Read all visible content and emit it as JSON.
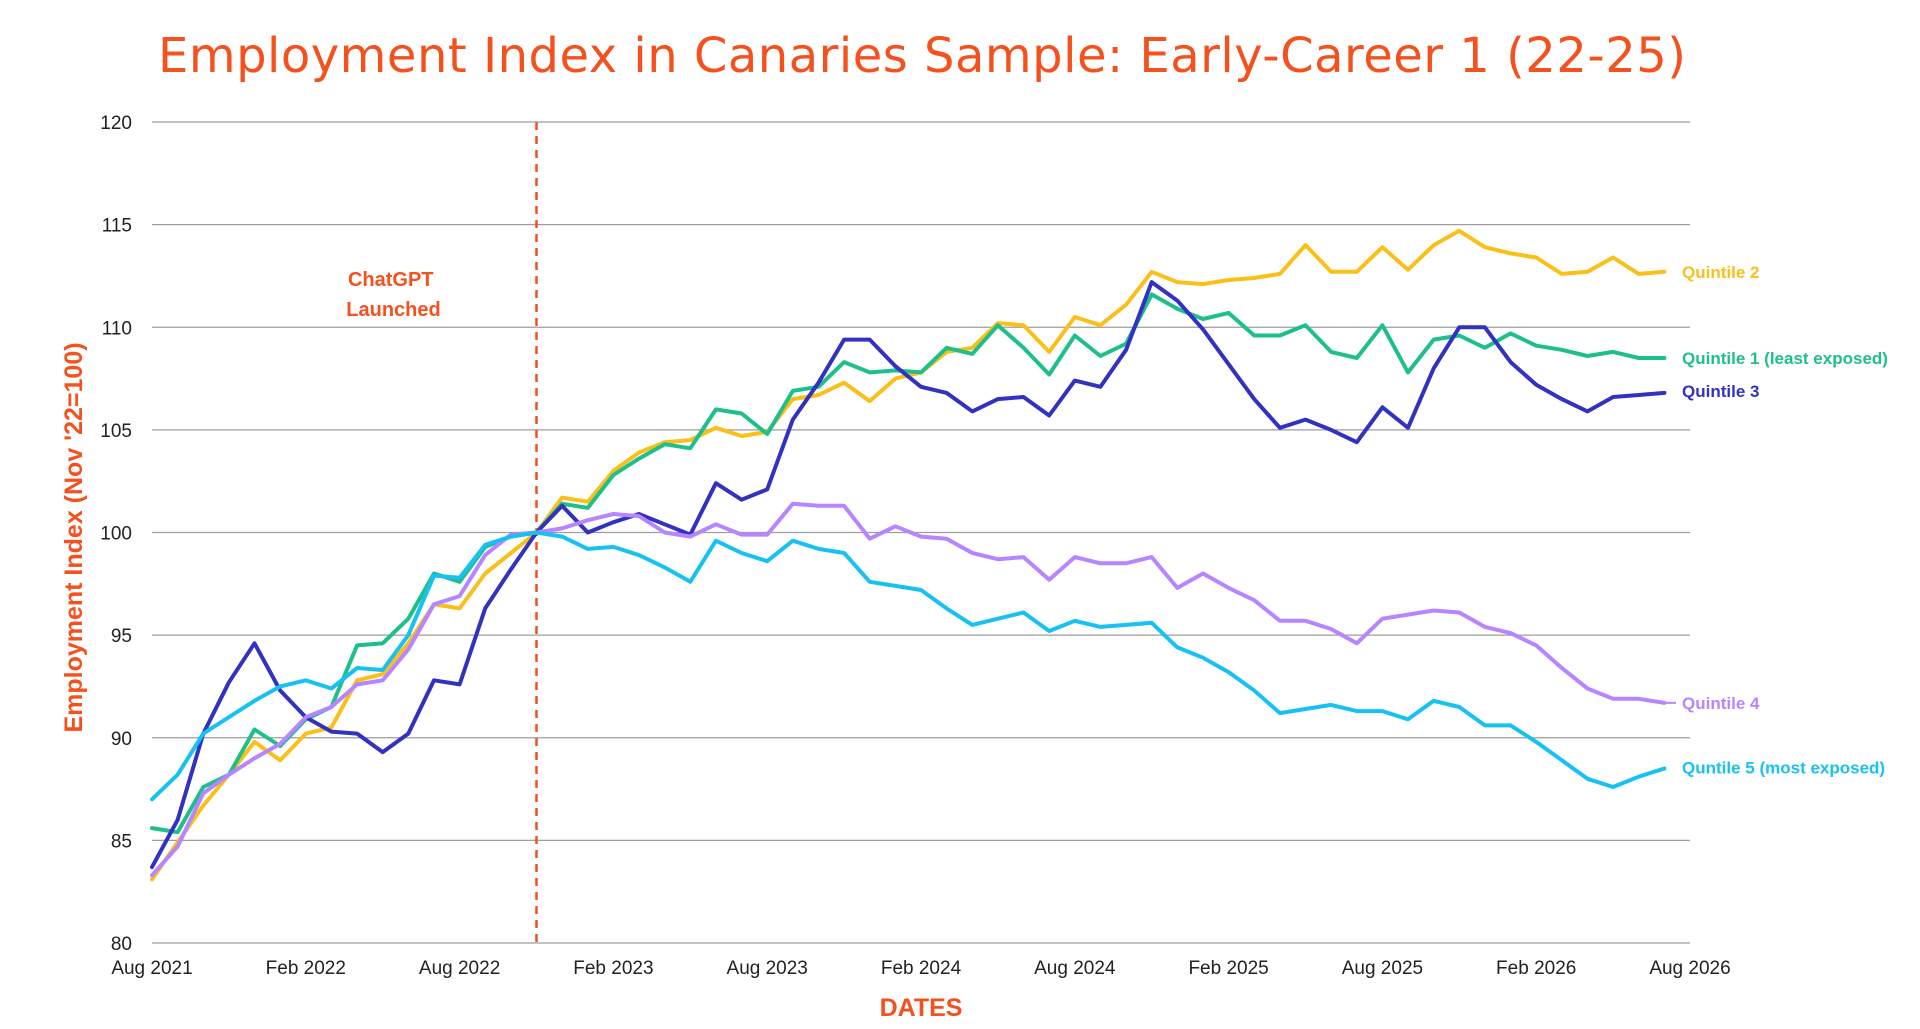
{
  "chart_data": {
    "type": "line",
    "title": "Employment Index in Canaries Sample: Early-Career 1 (22-25)",
    "xlabel": "DATES",
    "ylabel": "Employment Index (Nov '22=100)",
    "ylim": [
      80,
      120
    ],
    "yticks": [
      80,
      85,
      90,
      95,
      100,
      105,
      110,
      115,
      120
    ],
    "xlim": [
      "2021-08",
      "2026-08"
    ],
    "xticks": [
      "Aug 2021",
      "Feb 2022",
      "Aug 2022",
      "Feb 2023",
      "Aug 2023",
      "Feb 2024",
      "Aug 2024",
      "Feb 2025",
      "Aug 2025",
      "Feb 2026",
      "Aug 2026"
    ],
    "grid": "horizontal",
    "legend": "direct labels at right end of lines",
    "x": [
      "2021-08",
      "2021-09",
      "2021-10",
      "2021-11",
      "2021-12",
      "2022-01",
      "2022-02",
      "2022-03",
      "2022-04",
      "2022-05",
      "2022-06",
      "2022-07",
      "2022-08",
      "2022-09",
      "2022-10",
      "2022-11",
      "2022-12",
      "2023-01",
      "2023-02",
      "2023-03",
      "2023-04",
      "2023-05",
      "2023-06",
      "2023-07",
      "2023-08",
      "2023-09",
      "2023-10",
      "2023-11",
      "2023-12",
      "2024-01",
      "2024-02",
      "2024-03",
      "2024-04",
      "2024-05",
      "2024-06",
      "2024-07",
      "2024-08",
      "2024-09",
      "2024-10",
      "2024-11",
      "2024-12",
      "2025-01",
      "2025-02",
      "2025-03",
      "2025-04",
      "2025-05",
      "2025-06",
      "2025-07",
      "2025-08",
      "2025-09",
      "2025-10",
      "2025-11",
      "2025-12",
      "2026-01",
      "2026-02",
      "2026-03",
      "2026-04",
      "2026-05",
      "2026-06",
      "2026-07"
    ],
    "series": [
      {
        "name": "Quintile 2",
        "color": "#fbbf1a",
        "values": [
          83.1,
          84.9,
          86.7,
          88.2,
          89.8,
          88.9,
          90.2,
          90.5,
          92.8,
          93.1,
          94.6,
          96.5,
          96.3,
          98.0,
          99.0,
          100.0,
          101.7,
          101.5,
          103.0,
          103.9,
          104.4,
          104.5,
          105.1,
          104.7,
          104.9,
          106.5,
          106.7,
          107.3,
          106.4,
          107.5,
          107.8,
          108.8,
          109.0,
          110.2,
          110.1,
          108.8,
          110.5,
          110.1,
          111.1,
          112.7,
          112.2,
          112.1,
          112.3,
          112.4,
          112.6,
          114.0,
          112.7,
          112.7,
          113.9,
          112.8,
          114.0,
          114.7,
          113.9,
          113.6,
          113.4,
          112.6,
          112.7,
          113.4,
          112.6,
          112.7
        ]
      },
      {
        "name": "Quintile 1 (least exposed)",
        "color": "#1ebf8a",
        "values": [
          85.6,
          85.4,
          87.6,
          88.2,
          90.4,
          89.6,
          90.9,
          91.5,
          94.5,
          94.6,
          95.8,
          98.0,
          97.6,
          99.3,
          99.8,
          100.0,
          101.4,
          101.2,
          102.8,
          103.6,
          104.3,
          104.1,
          106.0,
          105.8,
          104.8,
          106.9,
          107.1,
          108.3,
          107.8,
          107.9,
          107.8,
          109.0,
          108.7,
          110.1,
          109.0,
          107.7,
          109.6,
          108.6,
          109.2,
          111.6,
          110.9,
          110.4,
          110.7,
          109.6,
          109.6,
          110.1,
          108.8,
          108.5,
          110.1,
          107.8,
          109.4,
          109.6,
          109.0,
          109.7,
          109.1,
          108.9,
          108.6,
          108.8,
          108.5,
          108.5
        ]
      },
      {
        "name": "Quintile 3",
        "color": "#3232c0",
        "values": [
          83.7,
          86.0,
          90.2,
          92.7,
          94.6,
          92.3,
          91.0,
          90.3,
          90.2,
          89.3,
          90.2,
          92.8,
          92.6,
          96.3,
          98.2,
          100.0,
          101.3,
          100.0,
          100.5,
          100.9,
          100.4,
          99.9,
          102.4,
          101.6,
          102.1,
          105.5,
          107.3,
          109.4,
          109.4,
          108.1,
          107.1,
          106.8,
          105.9,
          106.5,
          106.6,
          105.7,
          107.4,
          107.1,
          108.9,
          112.2,
          111.3,
          109.9,
          108.2,
          106.5,
          105.1,
          105.5,
          105.0,
          104.4,
          106.1,
          105.1,
          108.0,
          110.0,
          110.0,
          108.3,
          107.2,
          106.5,
          105.9,
          106.6,
          106.7,
          106.8
        ]
      },
      {
        "name": "Quintile 4",
        "color": "#b685ff",
        "values": [
          83.3,
          84.7,
          87.3,
          88.2,
          89.0,
          89.7,
          91.0,
          91.5,
          92.6,
          92.8,
          94.3,
          96.5,
          96.9,
          98.9,
          99.9,
          100.0,
          100.2,
          100.6,
          100.9,
          100.8,
          100.0,
          99.8,
          100.4,
          99.9,
          99.9,
          101.4,
          101.3,
          101.3,
          99.7,
          100.3,
          99.8,
          99.7,
          99.0,
          98.7,
          98.8,
          97.7,
          98.8,
          98.5,
          98.5,
          98.8,
          97.3,
          98.0,
          97.3,
          96.7,
          95.7,
          95.7,
          95.3,
          94.6,
          95.8,
          96.0,
          96.2,
          96.1,
          95.4,
          95.1,
          94.5,
          93.4,
          92.4,
          91.9,
          91.9,
          91.7
        ]
      },
      {
        "name": "Quntile 5 (most exposed)",
        "color": "#17c2f2",
        "values": [
          87.0,
          88.2,
          90.2,
          91.0,
          91.8,
          92.5,
          92.8,
          92.4,
          93.4,
          93.3,
          95.0,
          97.9,
          97.8,
          99.4,
          99.8,
          100.0,
          99.8,
          99.2,
          99.3,
          98.9,
          98.3,
          97.6,
          99.6,
          99.0,
          98.6,
          99.6,
          99.2,
          99.0,
          97.6,
          97.4,
          97.2,
          96.3,
          95.5,
          95.8,
          96.1,
          95.2,
          95.7,
          95.4,
          95.5,
          95.6,
          94.4,
          93.9,
          93.2,
          92.3,
          91.2,
          91.4,
          91.6,
          91.3,
          91.3,
          90.9,
          91.8,
          91.5,
          90.6,
          90.6,
          89.8,
          88.9,
          88.0,
          87.6,
          88.1,
          88.5
        ]
      }
    ],
    "annotations": [
      {
        "text_lines": [
          "ChatGPT",
          "Launched"
        ],
        "x": "2022-11",
        "style": "vertical dashed line",
        "color": "#f4511e"
      }
    ]
  },
  "colors": {
    "title": "#f4511e",
    "accent": "#f4511e",
    "grid": "#9e9e9e",
    "tick_text": "#222222"
  }
}
